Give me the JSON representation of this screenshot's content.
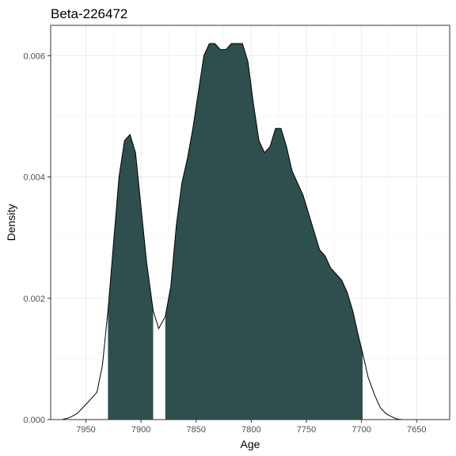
{
  "chart_data": {
    "type": "area",
    "title": "Beta-226472",
    "xlabel": "Age",
    "ylabel": "Density",
    "x_reversed": true,
    "xlim": [
      7982,
      7620
    ],
    "ylim": [
      0,
      0.0065
    ],
    "x_ticks": [
      7950,
      7900,
      7850,
      7800,
      7750,
      7700,
      7650
    ],
    "x_tick_labels": [
      "7950",
      "7900",
      "7850",
      "7800",
      "7750",
      "7700",
      "7650"
    ],
    "y_ticks": [
      0,
      0.002,
      0.004,
      0.006
    ],
    "y_tick_labels": [
      "0.000",
      "0.002",
      "0.004",
      "0.006"
    ],
    "grid": true,
    "fill_color": "#2f4f4f",
    "line_color": "#000000",
    "shaded_ranges": [
      [
        7930,
        7889
      ],
      [
        7878,
        7699
      ]
    ],
    "density": {
      "x": [
        7972,
        7965,
        7958,
        7950,
        7945,
        7940,
        7935,
        7930,
        7925,
        7920,
        7915,
        7910,
        7905,
        7900,
        7895,
        7889,
        7884,
        7878,
        7873,
        7868,
        7863,
        7858,
        7853,
        7848,
        7843,
        7838,
        7833,
        7828,
        7823,
        7818,
        7813,
        7808,
        7803,
        7798,
        7793,
        7788,
        7783,
        7778,
        7773,
        7768,
        7763,
        7758,
        7753,
        7748,
        7743,
        7738,
        7733,
        7728,
        7723,
        7718,
        7713,
        7708,
        7703,
        7699,
        7694,
        7688,
        7683,
        7678,
        7673,
        7668,
        7662,
        7656,
        7650,
        7640,
        7630
      ],
      "y": [
        0.0,
        3e-05,
        0.0001,
        0.00025,
        0.00035,
        0.00045,
        0.0009,
        0.0018,
        0.0029,
        0.004,
        0.0046,
        0.0047,
        0.0044,
        0.0035,
        0.0026,
        0.0018,
        0.0015,
        0.0017,
        0.0022,
        0.0032,
        0.0039,
        0.0043,
        0.0048,
        0.0054,
        0.006,
        0.0062,
        0.0062,
        0.0061,
        0.0061,
        0.0062,
        0.0062,
        0.0062,
        0.0059,
        0.0052,
        0.0046,
        0.0044,
        0.0045,
        0.0048,
        0.0048,
        0.0045,
        0.0041,
        0.0039,
        0.0037,
        0.0034,
        0.0031,
        0.0028,
        0.0027,
        0.0025,
        0.0024,
        0.0023,
        0.0021,
        0.0018,
        0.0014,
        0.0011,
        0.0007,
        0.0004,
        0.0002,
        0.0001,
        5e-05,
        1e-05,
        0.0,
        0.0,
        0.0,
        0.0,
        0.0
      ]
    }
  }
}
